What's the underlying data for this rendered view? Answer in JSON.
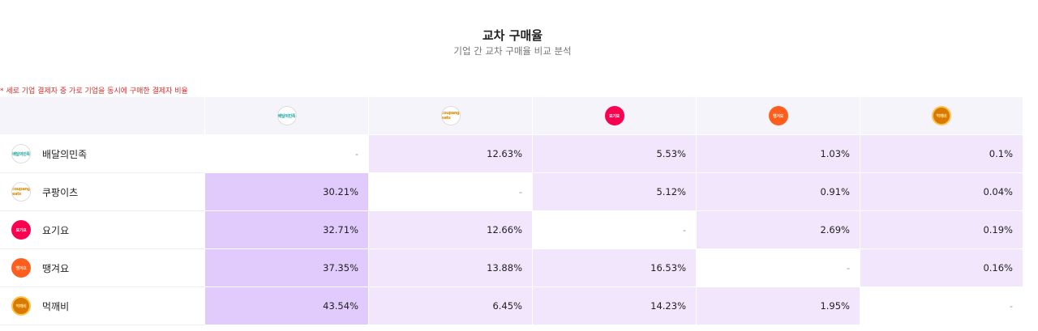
{
  "header": {
    "title": "교차 구매율",
    "subtitle": "기업 간 교차 구매율 비교 분석"
  },
  "note": "* 세로 기업 결제자 중 가로 기업을 동시에 구매한 결제자 비율",
  "companies": [
    {
      "name": "배달의민족",
      "logo_text": "배달의민족",
      "logo_icon": "baemin-logo-icon",
      "color": "#1aa5a0"
    },
    {
      "name": "쿠팡이츠",
      "logo_text": "coupang eats",
      "logo_icon": "coupang-eats-logo-icon",
      "color": "#e08a00"
    },
    {
      "name": "요기요",
      "logo_text": "요기요",
      "logo_icon": "yogiyo-logo-icon",
      "color": "#fa0050"
    },
    {
      "name": "땡겨요",
      "logo_text": "땡겨요",
      "logo_icon": "ddanggyeoyo-logo-icon",
      "color": "#ff5e1f"
    },
    {
      "name": "먹깨비",
      "logo_text": "먹깨비",
      "logo_icon": "meokkaebi-logo-icon",
      "color": "#d97a00"
    }
  ],
  "matrix": [
    [
      "-",
      "12.63%",
      "5.53%",
      "1.03%",
      "0.1%"
    ],
    [
      "30.21%",
      "-",
      "5.12%",
      "0.91%",
      "0.04%"
    ],
    [
      "32.71%",
      "12.66%",
      "-",
      "2.69%",
      "0.19%"
    ],
    [
      "37.35%",
      "13.88%",
      "16.53%",
      "-",
      "0.16%"
    ],
    [
      "43.54%",
      "6.45%",
      "14.23%",
      "1.95%",
      "-"
    ]
  ],
  "colors": {
    "high": "#e1cafc",
    "low": "#f1e6fc",
    "none": "#ffffff",
    "header_bg": "#f4f4fa",
    "note": "#d32f2f"
  }
}
